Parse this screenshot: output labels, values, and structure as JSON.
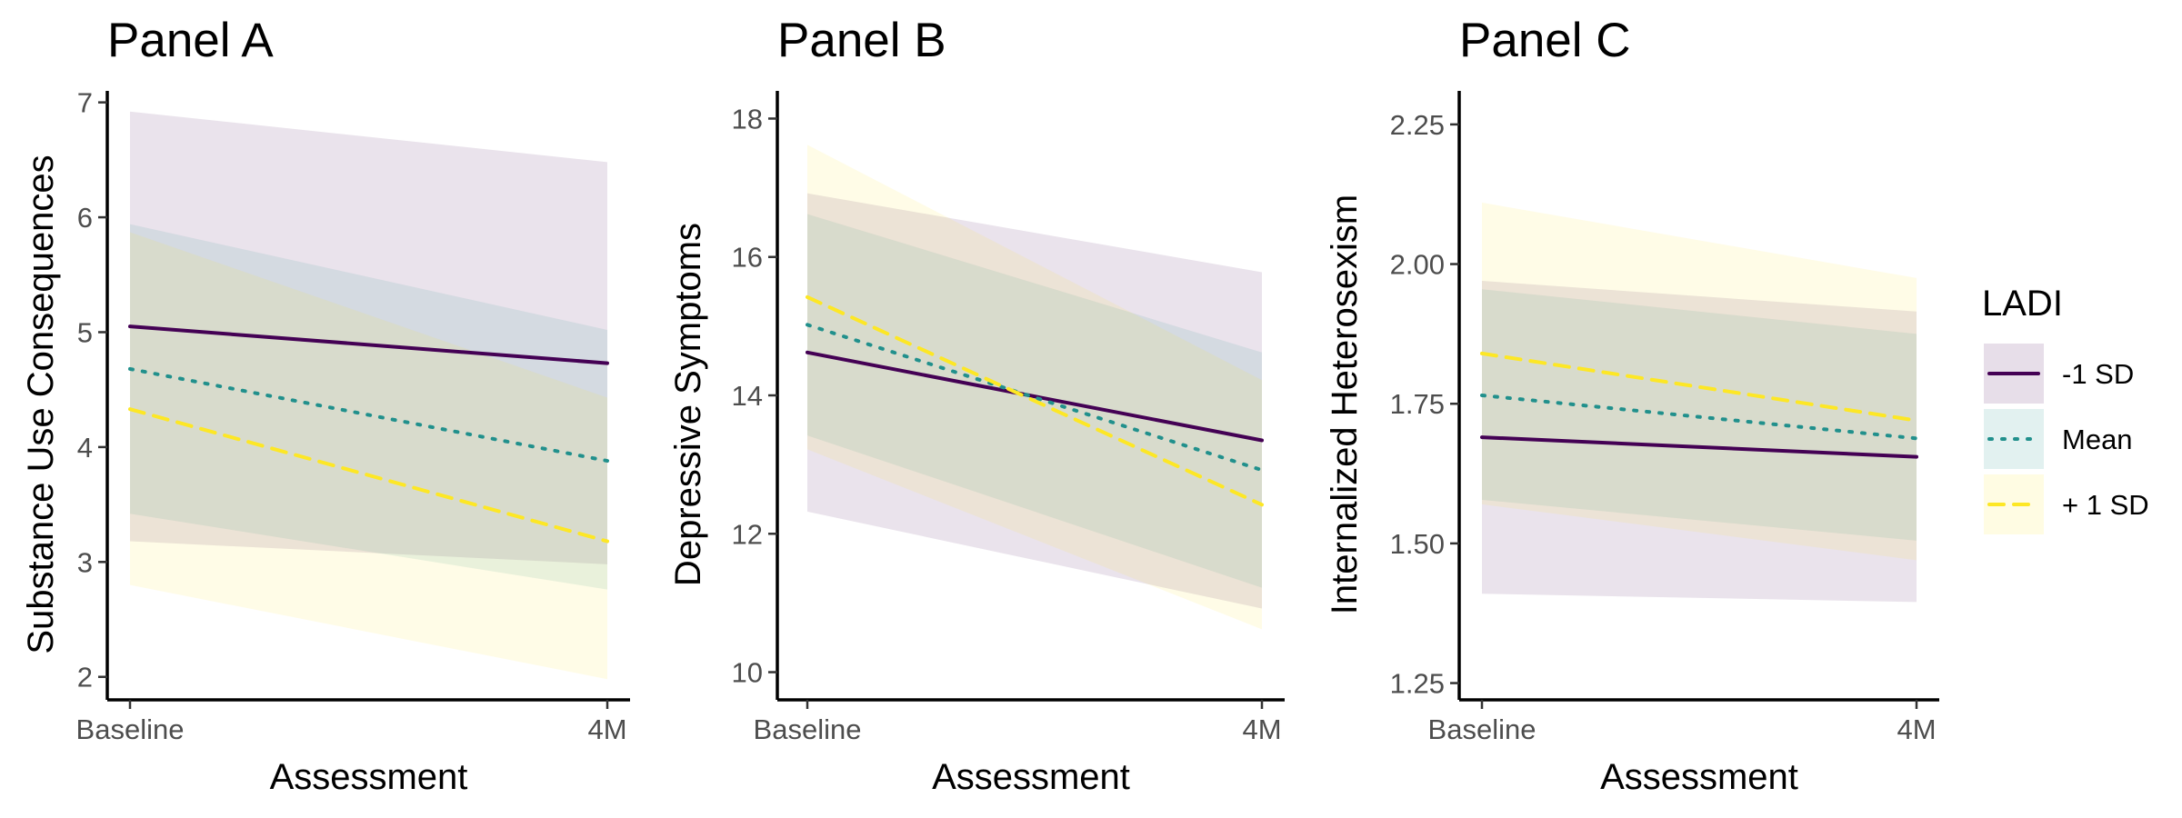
{
  "chart_data": [
    {
      "type": "line",
      "title": "Panel A",
      "xlabel": "Assessment",
      "ylabel": "Substance Use Consequences",
      "categories": [
        "Baseline",
        "4M"
      ],
      "ylim": [
        1.8,
        7.1
      ],
      "yticks": [
        2,
        3,
        4,
        5,
        6,
        7
      ],
      "ytick_labels": [
        "2",
        "3",
        "4",
        "5",
        "6",
        "7"
      ],
      "series": [
        {
          "name": "-1 SD",
          "values": [
            5.05,
            4.73
          ],
          "lower": [
            3.18,
            2.98
          ],
          "upper": [
            6.92,
            6.48
          ]
        },
        {
          "name": "Mean",
          "values": [
            4.68,
            3.88
          ],
          "lower": [
            3.42,
            2.76
          ],
          "upper": [
            5.94,
            5.02
          ]
        },
        {
          "name": "+ 1 SD",
          "values": [
            4.33,
            3.18
          ],
          "lower": [
            2.8,
            1.98
          ],
          "upper": [
            5.87,
            4.43
          ]
        }
      ]
    },
    {
      "type": "line",
      "title": "Panel B",
      "xlabel": "Assessment",
      "ylabel": "Depressive Symptoms",
      "categories": [
        "Baseline",
        "4M"
      ],
      "ylim": [
        9.6,
        18.4
      ],
      "yticks": [
        10,
        12,
        14,
        16,
        18
      ],
      "ytick_labels": [
        "10",
        "12",
        "14",
        "16",
        "18"
      ],
      "series": [
        {
          "name": "-1 SD",
          "values": [
            14.62,
            13.35
          ],
          "lower": [
            12.32,
            10.92
          ],
          "upper": [
            16.92,
            15.78
          ]
        },
        {
          "name": "Mean",
          "values": [
            15.02,
            12.92
          ],
          "lower": [
            13.42,
            11.22
          ],
          "upper": [
            16.62,
            14.62
          ]
        },
        {
          "name": "+ 1 SD",
          "values": [
            15.42,
            12.42
          ],
          "lower": [
            13.22,
            10.62
          ],
          "upper": [
            17.62,
            14.22
          ]
        }
      ]
    },
    {
      "type": "line",
      "title": "Panel C",
      "xlabel": "Assessment",
      "ylabel": "Internalized Heterosexism",
      "categories": [
        "Baseline",
        "4M"
      ],
      "ylim": [
        1.22,
        2.31
      ],
      "yticks": [
        1.25,
        1.5,
        1.75,
        2.0,
        2.25
      ],
      "ytick_labels": [
        "1.25",
        "1.50",
        "1.75",
        "2.00",
        "2.25"
      ],
      "series": [
        {
          "name": "-1 SD",
          "values": [
            1.69,
            1.655
          ],
          "lower": [
            1.41,
            1.395
          ],
          "upper": [
            1.97,
            1.915
          ]
        },
        {
          "name": "Mean",
          "values": [
            1.765,
            1.688
          ],
          "lower": [
            1.578,
            1.505
          ],
          "upper": [
            1.955,
            1.875
          ]
        },
        {
          "name": "+ 1 SD",
          "values": [
            1.84,
            1.72
          ],
          "lower": [
            1.57,
            1.47
          ],
          "upper": [
            2.11,
            1.975
          ]
        }
      ]
    }
  ],
  "legend": {
    "title": "LADI",
    "entries": [
      {
        "name": "-1 SD",
        "color": "#440154",
        "dash": "solid"
      },
      {
        "name": "Mean",
        "color": "#21908C",
        "dash": "dotted"
      },
      {
        "name": "+ 1 SD",
        "color": "#FDE725",
        "dash": "dashed"
      }
    ]
  },
  "colors": {
    "series": [
      "#440154",
      "#21908C",
      "#FDE725"
    ],
    "ribbon": [
      "#440154",
      "#21908C",
      "#FDE725"
    ]
  }
}
